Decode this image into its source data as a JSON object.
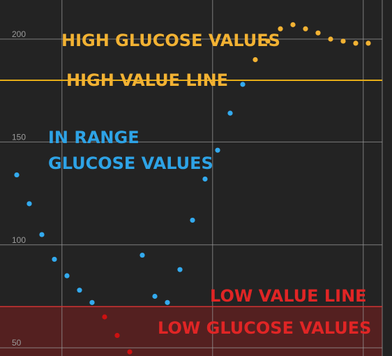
{
  "chart_data": {
    "type": "scatter",
    "ylim": [
      46,
      219
    ],
    "xlim": [
      0,
      29
    ],
    "grid": true,
    "y_ticks": [
      50,
      100,
      150,
      200
    ],
    "x_gridlines": [
      3.6,
      15.6,
      27.6
    ],
    "thresholds": {
      "high": {
        "value": 180,
        "color": "#e6ad17"
      },
      "low": {
        "value": 70,
        "color": "#d23232",
        "fill": "#5a2020"
      }
    },
    "colors": {
      "in_range": "#33aaee",
      "high": "#f2b233",
      "low": "#cc1111"
    },
    "points": [
      {
        "x": 0,
        "y": 134
      },
      {
        "x": 1,
        "y": 120
      },
      {
        "x": 2,
        "y": 105
      },
      {
        "x": 3,
        "y": 93
      },
      {
        "x": 4,
        "y": 85
      },
      {
        "x": 5,
        "y": 78
      },
      {
        "x": 6,
        "y": 72
      },
      {
        "x": 7,
        "y": 65
      },
      {
        "x": 8,
        "y": 56
      },
      {
        "x": 9,
        "y": 48
      },
      {
        "x": 10,
        "y": 95
      },
      {
        "x": 11,
        "y": 75
      },
      {
        "x": 12,
        "y": 72
      },
      {
        "x": 13,
        "y": 88
      },
      {
        "x": 14,
        "y": 112
      },
      {
        "x": 15,
        "y": 132
      },
      {
        "x": 16,
        "y": 146
      },
      {
        "x": 17,
        "y": 164
      },
      {
        "x": 18,
        "y": 178
      },
      {
        "x": 19,
        "y": 190
      },
      {
        "x": 20,
        "y": 199
      },
      {
        "x": 21,
        "y": 205
      },
      {
        "x": 22,
        "y": 207
      },
      {
        "x": 23,
        "y": 205
      },
      {
        "x": 24,
        "y": 203
      },
      {
        "x": 25,
        "y": 200
      },
      {
        "x": 26,
        "y": 199
      },
      {
        "x": 27,
        "y": 198
      },
      {
        "x": 28,
        "y": 198
      }
    ],
    "annotations": {
      "high_values": "HIGH GLUCOSE VALUES",
      "high_line": "HIGH VALUE LINE",
      "in_range_1": "IN RANGE",
      "in_range_2": "GLUCOSE VALUES",
      "low_line": "LOW VALUE LINE",
      "low_values": "LOW GLUCOSE VALUES"
    }
  }
}
